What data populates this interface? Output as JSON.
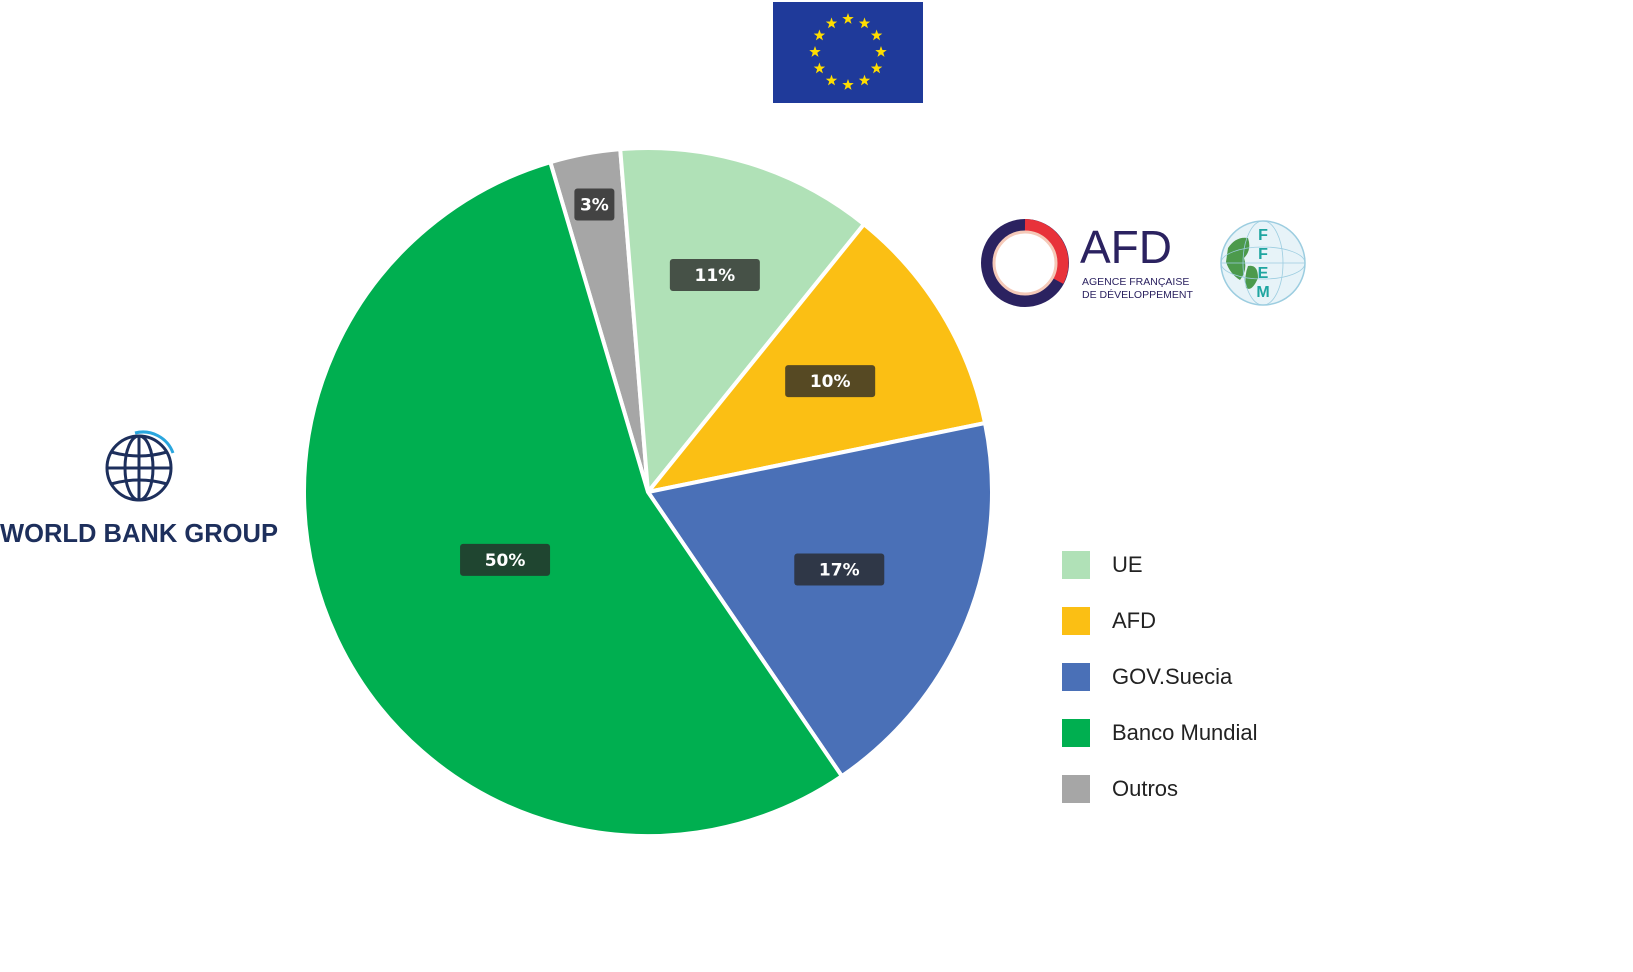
{
  "chart_data": {
    "type": "pie",
    "title": "",
    "slices": [
      {
        "label": "Outros",
        "value": 3,
        "display": "3%",
        "color": "#A6A6A6"
      },
      {
        "label": "UE",
        "value": 11,
        "display": "11%",
        "color": "#B0E1B7"
      },
      {
        "label": "AFD",
        "value": 10,
        "display": "10%",
        "color": "#FBBF14"
      },
      {
        "label": "GOV.Suecia",
        "value": 17,
        "display": "17%",
        "color": "#4A70B7"
      },
      {
        "label": "Banco Mundial",
        "value": 50,
        "display": "50%",
        "color": "#00AF50"
      }
    ],
    "legend_order": [
      "UE",
      "AFD",
      "GOV.Suecia",
      "Banco Mundial",
      "Outros"
    ],
    "legend_position": "right"
  },
  "logos": {
    "eu": "European Union flag",
    "world_bank_text": "WORLD BANK GROUP",
    "afd_text": "AFD",
    "afd_subtitle_1": "AGENCE FRANÇAISE",
    "afd_subtitle_2": "DE DÉVELOPPEMENT",
    "ffem_letters": [
      "F",
      "F",
      "E",
      "M"
    ]
  }
}
